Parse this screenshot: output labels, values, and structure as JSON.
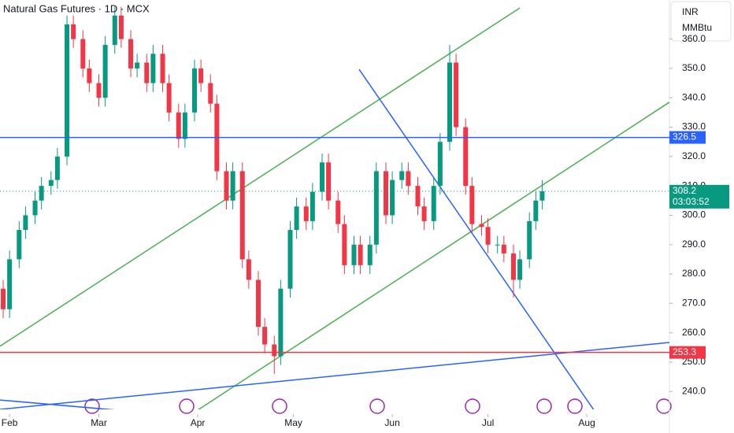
{
  "chart_data": {
    "type": "candlestick",
    "title": "Natural Gas Futures · 1D · MCX",
    "currency": "INR",
    "unit": "MMBtu",
    "x": [
      30,
      32,
      35,
      37,
      40,
      42,
      45,
      47,
      50,
      52,
      55,
      57,
      60,
      62,
      65,
      67,
      70,
      72,
      75,
      77,
      80,
      82,
      85,
      87,
      90,
      92,
      95,
      97,
      100,
      102,
      105,
      107,
      110,
      112,
      115,
      117,
      120,
      122,
      125,
      127,
      130,
      132,
      135,
      137,
      140,
      142,
      145,
      147,
      150,
      152,
      155,
      157,
      160,
      162,
      165,
      167,
      170,
      172,
      175,
      177,
      180,
      182,
      185,
      187,
      190,
      192,
      195,
      197,
      199
    ],
    "open": [
      275,
      268,
      285,
      295,
      300,
      305,
      310,
      312,
      320,
      365,
      360,
      350,
      345,
      340,
      358,
      368,
      360,
      350,
      352,
      345,
      355,
      345,
      335,
      326,
      335,
      350,
      345,
      338,
      315,
      305,
      315,
      285,
      278,
      262,
      256,
      252,
      275,
      295,
      303,
      298,
      308,
      318,
      305,
      297,
      283,
      290,
      283,
      290,
      315,
      300,
      312,
      315,
      310,
      303,
      298,
      310,
      325,
      352,
      330,
      310,
      297,
      296,
      290,
      290,
      287,
      278,
      285,
      298,
      305
    ],
    "high": [
      278,
      288,
      298,
      303,
      308,
      313,
      315,
      323,
      368,
      368,
      363,
      353,
      348,
      361,
      371,
      371,
      363,
      355,
      355,
      358,
      358,
      348,
      338,
      338,
      353,
      353,
      348,
      341,
      318,
      318,
      318,
      288,
      281,
      265,
      259,
      278,
      298,
      306,
      306,
      311,
      321,
      321,
      308,
      300,
      293,
      293,
      293,
      318,
      318,
      315,
      318,
      318,
      313,
      306,
      313,
      328,
      358,
      355,
      333,
      313,
      300,
      299,
      293,
      293,
      290,
      288,
      301,
      308,
      312
    ],
    "low": [
      265,
      265,
      282,
      292,
      297,
      302,
      307,
      309,
      317,
      357,
      347,
      342,
      337,
      337,
      355,
      357,
      347,
      347,
      342,
      342,
      342,
      332,
      323,
      323,
      332,
      342,
      335,
      312,
      302,
      302,
      282,
      275,
      259,
      253,
      246,
      249,
      272,
      292,
      295,
      295,
      305,
      302,
      294,
      280,
      280,
      280,
      280,
      287,
      297,
      297,
      309,
      307,
      300,
      295,
      295,
      307,
      322,
      327,
      307,
      294,
      293,
      287,
      287,
      284,
      272,
      275,
      282,
      295,
      302
    ],
    "close": [
      268,
      285,
      295,
      300,
      305,
      310,
      312,
      320,
      365,
      360,
      350,
      345,
      340,
      358,
      368,
      360,
      350,
      352,
      345,
      355,
      345,
      335,
      326,
      335,
      350,
      345,
      338,
      315,
      305,
      315,
      285,
      278,
      262,
      256,
      252,
      275,
      295,
      303,
      298,
      308,
      318,
      305,
      297,
      283,
      290,
      283,
      290,
      315,
      300,
      312,
      315,
      310,
      303,
      298,
      310,
      325,
      352,
      330,
      310,
      297,
      296,
      290,
      290,
      287,
      278,
      285,
      298,
      305,
      308.2
    ],
    "up_color": "#089981",
    "down_color": "#f23645",
    "xlim": [
      29,
      238.9
    ],
    "ylim": [
      233.9,
      373.3
    ],
    "xticks": [
      {
        "value": 32,
        "label": "Feb"
      },
      {
        "value": 60,
        "label": "Mar"
      },
      {
        "value": 91,
        "label": "Apr"
      },
      {
        "value": 121,
        "label": "May"
      },
      {
        "value": 152,
        "label": "Jun"
      },
      {
        "value": 182,
        "label": "Jul"
      },
      {
        "value": 213,
        "label": "Aug"
      }
    ],
    "yticks": [
      {
        "value": 240,
        "label": "240.0"
      },
      {
        "value": 250,
        "label": "250.0"
      },
      {
        "value": 260,
        "label": "260.0"
      },
      {
        "value": 270,
        "label": "270.0"
      },
      {
        "value": 280,
        "label": "280.0"
      },
      {
        "value": 290,
        "label": "290.0"
      },
      {
        "value": 300,
        "label": "300.0"
      },
      {
        "value": 310,
        "label": "310.0"
      },
      {
        "value": 320,
        "label": "320.0"
      },
      {
        "value": 330,
        "label": "330.0"
      },
      {
        "value": 340,
        "label": "340.0"
      },
      {
        "value": 350,
        "label": "350.0"
      },
      {
        "value": 360,
        "label": "360.0"
      }
    ],
    "hlines": [
      {
        "value": 326.5,
        "color": "#2962ff"
      },
      {
        "value": 253.3,
        "color": "#f23645"
      }
    ],
    "last_price": 308.2,
    "countdown": "03:03:52",
    "last_color": "#089981",
    "trendlines": [
      {
        "x": [
          29,
          192
        ],
        "y": [
          255.4,
          370.6
        ],
        "color": "#4caf50"
      },
      {
        "x": [
          89.5,
          238.9
        ],
        "y": [
          232.6,
          338.5
        ],
        "color": "#4caf50"
      },
      {
        "x": [
          141.6,
          215.9
        ],
        "y": [
          349.7,
          232.6
        ],
        "color": "#2962ff"
      },
      {
        "x": [
          29,
          238.9
        ],
        "y": [
          233.9,
          256.7
        ],
        "color": "#2962ff"
      },
      {
        "x": [
          29,
          76.7
        ],
        "y": [
          237.1,
          232.6
        ],
        "color": "#2962ff"
      }
    ]
  }
}
